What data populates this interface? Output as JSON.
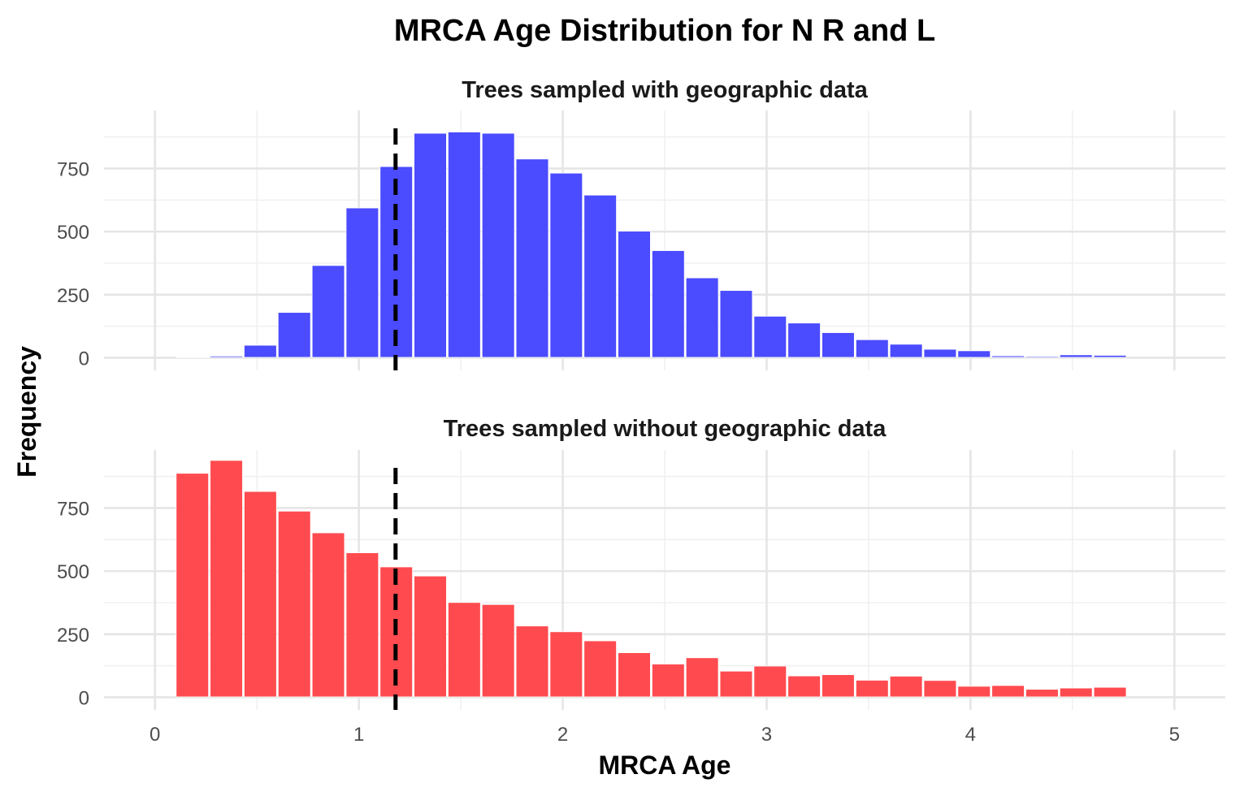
{
  "chart_data": {
    "type": "bar",
    "title": "MRCA Age Distribution for N R and L",
    "xlabel": "MRCA Age",
    "ylabel": "Frequency",
    "xlim": [
      -0.25,
      5.25
    ],
    "ylim": [
      -50,
      980
    ],
    "x_ticks": [
      "0",
      "1",
      "2",
      "3",
      "4",
      "5"
    ],
    "y_ticks": [
      "0",
      "250",
      "500",
      "750"
    ],
    "bin_width": 0.1667,
    "bin_start": 0.1,
    "reference_line": {
      "x": 1.18,
      "style": "dashed"
    },
    "grid": true,
    "panels": [
      {
        "subtitle": "Trees sampled with geographic data",
        "color": "#4b4bff",
        "values": [
          2,
          5,
          48,
          178,
          364,
          592,
          756,
          888,
          893,
          888,
          786,
          730,
          643,
          500,
          423,
          315,
          265,
          163,
          136,
          98,
          70,
          52,
          32,
          26,
          6,
          4,
          10,
          8
        ]
      },
      {
        "subtitle": "Trees sampled without geographic data",
        "color": "#ff4b4f",
        "values": [
          886,
          937,
          814,
          736,
          650,
          571,
          515,
          479,
          374,
          366,
          281,
          258,
          222,
          175,
          130,
          155,
          102,
          122,
          83,
          88,
          66,
          82,
          65,
          42,
          45,
          30,
          35,
          38
        ]
      }
    ]
  }
}
